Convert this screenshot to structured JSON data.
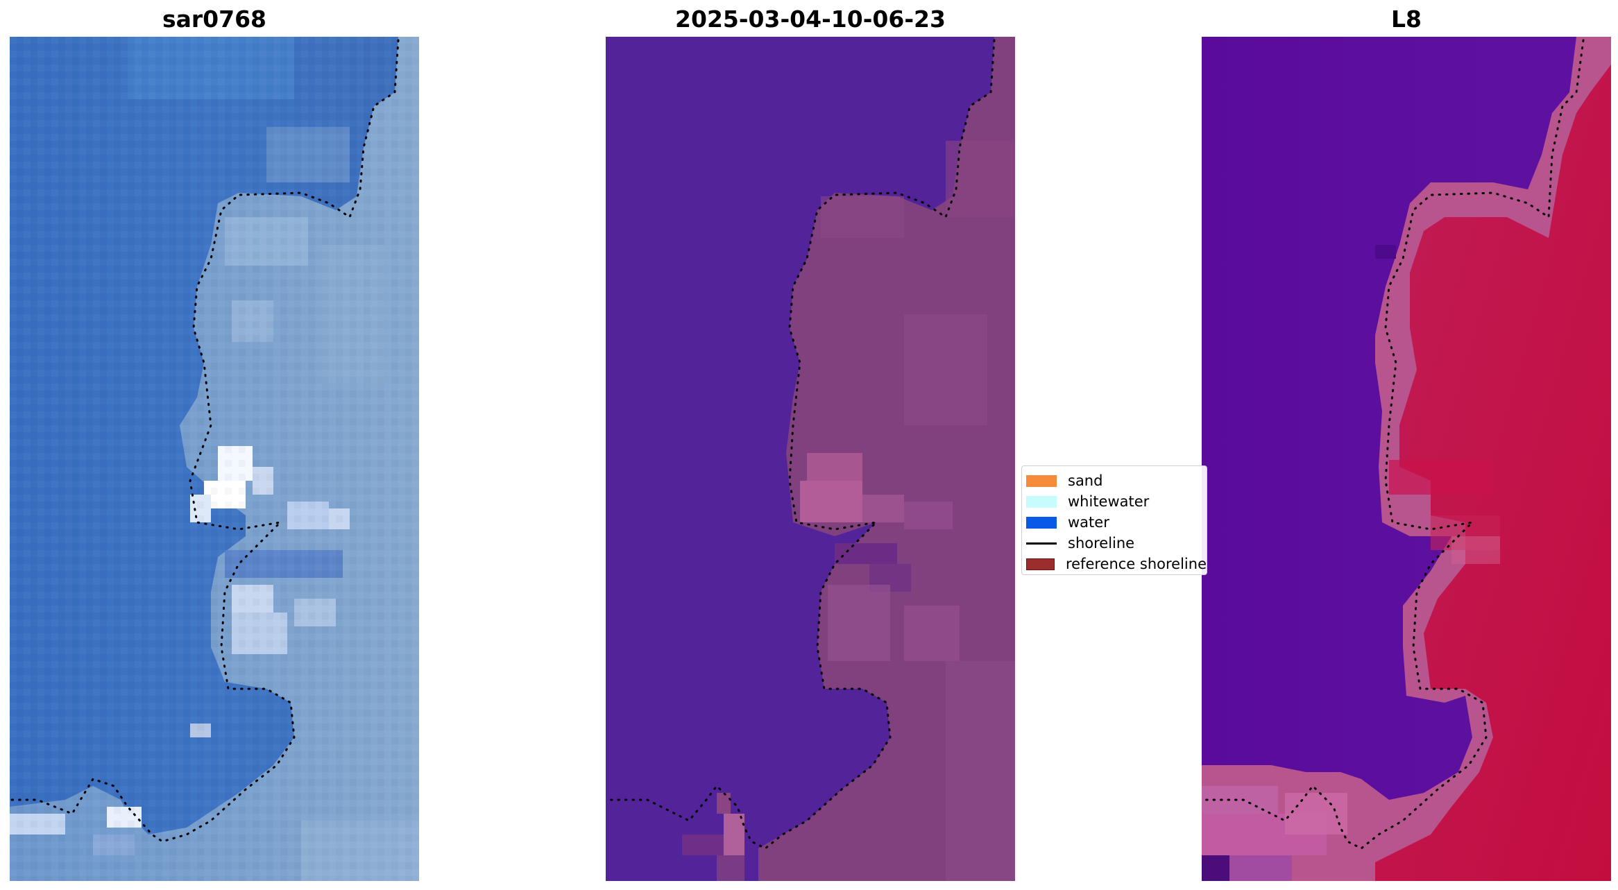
{
  "panels": [
    {
      "title": "sar0768"
    },
    {
      "title": "2025-03-04-10-06-23"
    },
    {
      "title": "L8"
    }
  ],
  "legend": {
    "items": [
      {
        "label": "sand",
        "color": "#f68b3c",
        "kind": "patch"
      },
      {
        "label": "whitewater",
        "color": "#c8fbfb",
        "kind": "patch"
      },
      {
        "label": "water",
        "color": "#0a59e6",
        "kind": "patch"
      },
      {
        "label": "shoreline",
        "color": "#000000",
        "kind": "line"
      },
      {
        "label": "reference shoreline",
        "color": "#9b2d2d",
        "kind": "patch"
      }
    ]
  },
  "colors": {
    "sar_water": "#3c70c0",
    "sar_land": "#7ea5cc",
    "sar_white": "#f4f8ff",
    "class_water": "#53239a",
    "class_land": "#81417e",
    "class_bright": "#b25d98",
    "l8_water": "#5b0c9d",
    "l8_edge": "#b8558f",
    "l8_land": "#c4184f"
  }
}
